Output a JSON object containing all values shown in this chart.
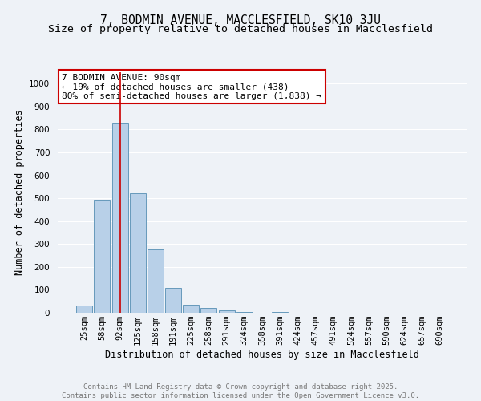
{
  "title": "7, BODMIN AVENUE, MACCLESFIELD, SK10 3JU",
  "subtitle": "Size of property relative to detached houses in Macclesfield",
  "xlabel": "Distribution of detached houses by size in Macclesfield",
  "ylabel": "Number of detached properties",
  "categories": [
    "25sqm",
    "58sqm",
    "92sqm",
    "125sqm",
    "158sqm",
    "191sqm",
    "225sqm",
    "258sqm",
    "291sqm",
    "324sqm",
    "358sqm",
    "391sqm",
    "424sqm",
    "457sqm",
    "491sqm",
    "524sqm",
    "557sqm",
    "590sqm",
    "624sqm",
    "657sqm",
    "690sqm"
  ],
  "values": [
    30,
    495,
    830,
    520,
    275,
    108,
    35,
    22,
    10,
    3,
    0,
    2,
    0,
    0,
    0,
    0,
    0,
    0,
    0,
    0,
    0
  ],
  "bar_color": "#b8d0e8",
  "bar_edge_color": "#6699bb",
  "property_line_idx": 2,
  "property_line_color": "#cc0000",
  "annotation_line1": "7 BODMIN AVENUE: 90sqm",
  "annotation_line2": "← 19% of detached houses are smaller (438)",
  "annotation_line3": "80% of semi-detached houses are larger (1,838) →",
  "annotation_box_color": "#cc0000",
  "ylim": [
    0,
    1050
  ],
  "yticks": [
    0,
    100,
    200,
    300,
    400,
    500,
    600,
    700,
    800,
    900,
    1000
  ],
  "background_color": "#eef2f7",
  "grid_color": "#ffffff",
  "footer_line1": "Contains HM Land Registry data © Crown copyright and database right 2025.",
  "footer_line2": "Contains public sector information licensed under the Open Government Licence v3.0.",
  "title_fontsize": 10.5,
  "subtitle_fontsize": 9.5,
  "xlabel_fontsize": 8.5,
  "ylabel_fontsize": 8.5,
  "tick_fontsize": 7.5,
  "annotation_fontsize": 8,
  "footer_fontsize": 6.5
}
